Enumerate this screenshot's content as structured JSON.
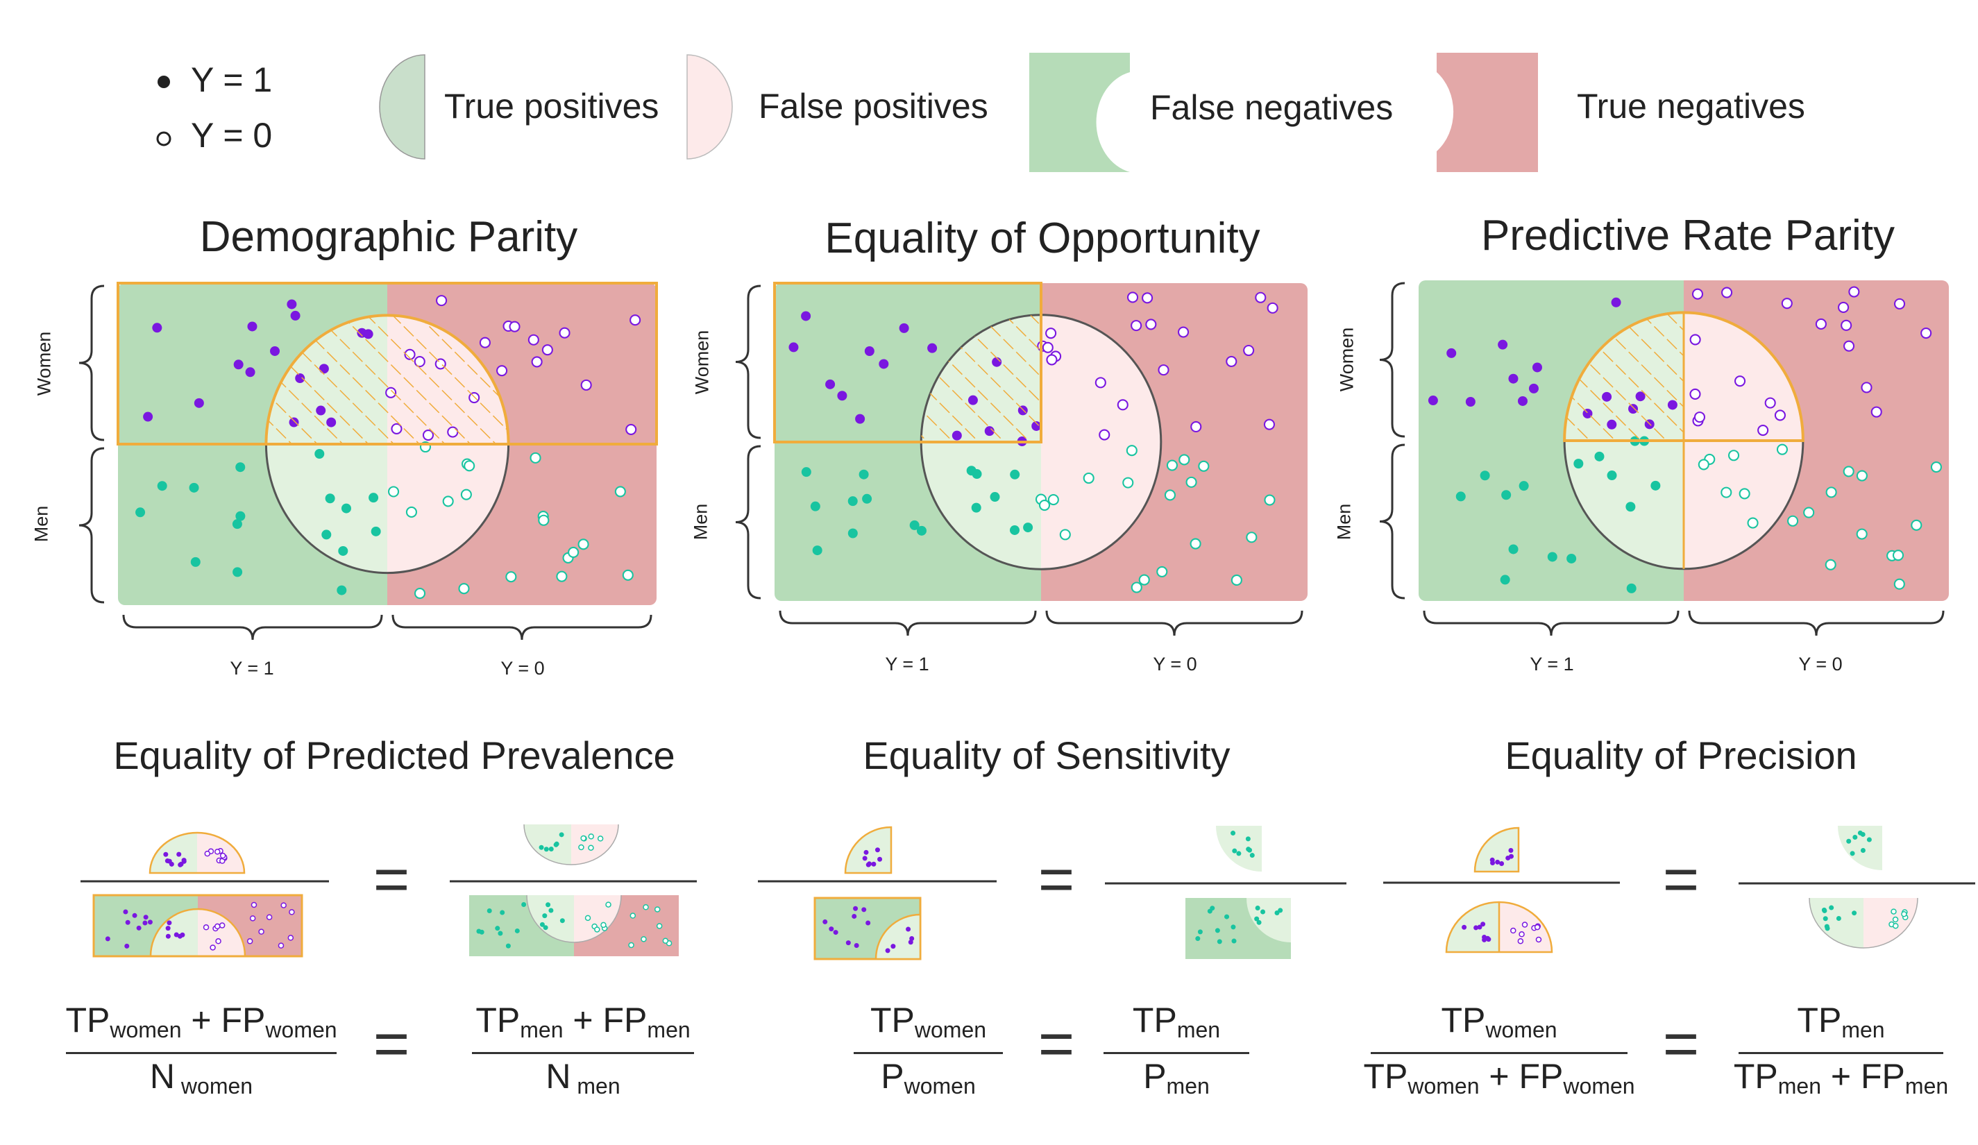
{
  "legend": {
    "y1": "Y = 1",
    "y0": "Y = 0",
    "tp": "True positives",
    "fp": "False positives",
    "fn": "False negatives",
    "tn": "True negatives"
  },
  "panels": [
    {
      "title": "Demographic Parity",
      "highlight": "women-full"
    },
    {
      "title": "Equality of Opportunity",
      "highlight": "women-positive"
    },
    {
      "title": "Predictive Rate Parity",
      "highlight": "women-predicted"
    }
  ],
  "axis": {
    "y1": "Y = 1",
    "y0": "Y = 0",
    "women": "Women",
    "men": "Men"
  },
  "metrics": [
    {
      "title": "Equality of Predicted Prevalence",
      "left": {
        "num_a": "TP",
        "num_a_sub": "women",
        "plus": " + ",
        "num_b": "FP",
        "num_b_sub": "women",
        "den": "N",
        "den_sub": " women"
      },
      "right": {
        "num_a": "TP",
        "num_a_sub": "men",
        "plus": " + ",
        "num_b": "FP",
        "num_b_sub": "men",
        "den": "N",
        "den_sub": " men"
      }
    },
    {
      "title": "Equality of Sensitivity",
      "left": {
        "num_a": "TP",
        "num_a_sub": "women",
        "den": "P",
        "den_sub": "women"
      },
      "right": {
        "num_a": "TP",
        "num_a_sub": "men",
        "den": "P",
        "den_sub": "men"
      }
    },
    {
      "title": "Equality of  Precision",
      "left": {
        "num_a": "TP",
        "num_a_sub": "women",
        "den_a": "TP",
        "den_a_sub": "women",
        "plus": " + ",
        "den_b": "FP",
        "den_b_sub": "women"
      },
      "right": {
        "num_a": "TP",
        "num_a_sub": "men",
        "den_a": "TP",
        "den_a_sub": "men",
        "plus": " + ",
        "den_b": "FP",
        "den_b_sub": "men"
      }
    }
  ],
  "equals": "=",
  "colors": {
    "tp": "#e2f2df",
    "fp": "#fdeaea",
    "fn": "#b6dcb8",
    "tn": "#e3a8a8",
    "legend_tp": "#c9dfcb",
    "women": "#7a17e0",
    "men": "#18c4a0",
    "highlight": "#f0ac3c"
  }
}
